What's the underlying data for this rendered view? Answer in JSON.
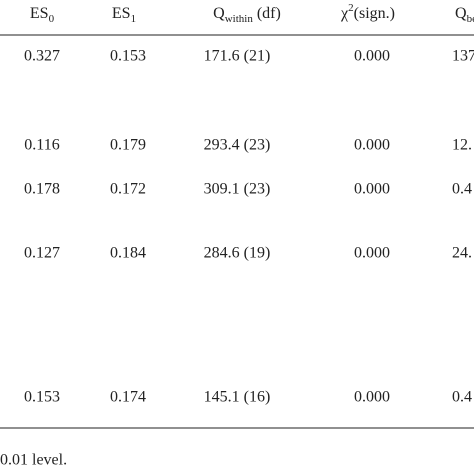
{
  "table": {
    "header": [
      {
        "text": "ES",
        "sub": "0"
      },
      {
        "text": "ES",
        "sub": "1"
      },
      {
        "text": "Q",
        "sub": "within",
        "after": " (df)"
      },
      {
        "text": "χ",
        "sup": "2",
        "after": "(sign.)"
      },
      {
        "text": "Q",
        "sub": "betw"
      }
    ],
    "rows": [
      [
        "0.327",
        "0.153",
        "171.6 (21)",
        "0.000",
        "137"
      ],
      [
        "0.116",
        "0.179",
        "293.4 (23)",
        "0.000",
        "12."
      ],
      [
        "0.178",
        "0.172",
        "309.1 (23)",
        "0.000",
        "0.4"
      ],
      [
        "0.127",
        "0.184",
        "284.6 (19)",
        "0.000",
        "24."
      ],
      [
        "0.153",
        "0.174",
        "145.1 (16)",
        "0.000",
        "0.4"
      ]
    ]
  },
  "footnote": "0.01 level."
}
